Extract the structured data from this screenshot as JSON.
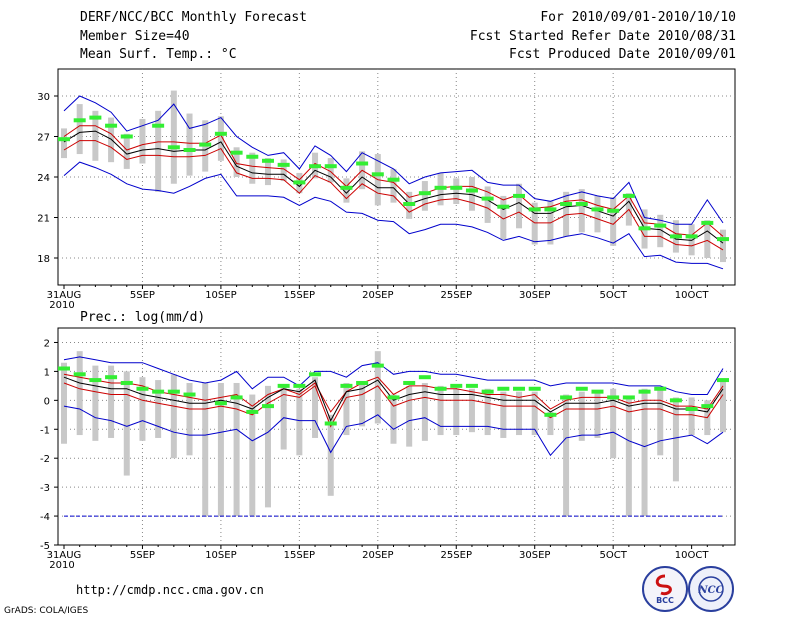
{
  "header": {
    "title": "DERF/NCC/BCC Monthly Forecast",
    "member": "Member Size=40",
    "var1": "Mean Surf. Temp.: °C",
    "period": "For 2010/09/01-2010/10/10",
    "started": "Fcst Started Refer Date 2010/08/31",
    "produced": "Fcst Produced Date 2010/09/01"
  },
  "footer": {
    "url": "http://cmdp.ncc.cma.gov.cn",
    "grads": "GrADS: COLA/IGES",
    "logo1": "BCC",
    "logo2": "NCC"
  },
  "colors": {
    "max_min": "#0000cc",
    "spread": "#cc0000",
    "mean": "#000000",
    "box": "#c8c8c8",
    "obs": "#33ee33",
    "grid": "#888888"
  },
  "chart_data": [
    {
      "type": "line",
      "title": "Mean Surf. Temp.: °C",
      "ylim": [
        16,
        32
      ],
      "yticks": [
        18,
        21,
        24,
        27,
        30
      ],
      "x_dates_start": "31AUG",
      "xticks": [
        "31AUG",
        "5SEP",
        "10SEP",
        "15SEP",
        "20SEP",
        "25SEP",
        "30SEP",
        "5OCT",
        "10OCT"
      ],
      "x_year": "2010",
      "series": [
        {
          "name": "max",
          "values": [
            28.9,
            30.0,
            29.5,
            28.8,
            27.4,
            27.8,
            28.2,
            29.4,
            27.6,
            27.9,
            28.4,
            27.0,
            26.2,
            25.6,
            25.8,
            24.6,
            26.3,
            25.6,
            24.4,
            25.8,
            25.2,
            24.6,
            23.5,
            24.0,
            24.3,
            24.4,
            24.5,
            23.6,
            23.4,
            23.4,
            22.4,
            22.2,
            22.6,
            22.9,
            22.6,
            22.4,
            23.6,
            21.0,
            20.8,
            20.5,
            20.5,
            22.3,
            20.6
          ]
        },
        {
          "name": "upper",
          "values": [
            27.0,
            27.8,
            27.8,
            27.2,
            26.0,
            26.4,
            26.6,
            26.6,
            26.5,
            26.5,
            27.1,
            25.0,
            24.8,
            24.7,
            24.6,
            23.8,
            25.0,
            24.4,
            23.3,
            24.5,
            23.8,
            23.6,
            22.5,
            22.8,
            23.2,
            23.3,
            23.3,
            22.9,
            22.3,
            22.7,
            21.7,
            21.8,
            22.2,
            22.3,
            21.9,
            21.6,
            22.6,
            20.6,
            20.5,
            19.8,
            19.7,
            20.6,
            19.6
          ]
        },
        {
          "name": "mean",
          "values": [
            26.6,
            27.3,
            27.4,
            26.8,
            25.7,
            26.0,
            26.1,
            25.9,
            26.0,
            26.0,
            26.6,
            24.8,
            24.3,
            24.2,
            24.2,
            23.3,
            24.5,
            24.0,
            22.8,
            24.0,
            23.2,
            23.2,
            22.0,
            22.4,
            22.7,
            22.8,
            22.7,
            22.3,
            21.6,
            22.1,
            21.3,
            21.3,
            21.8,
            21.9,
            21.5,
            21.1,
            22.2,
            20.2,
            20.1,
            19.4,
            19.3,
            20.0,
            19.1
          ]
        },
        {
          "name": "lower",
          "values": [
            26.0,
            26.7,
            26.7,
            26.2,
            25.3,
            25.6,
            25.6,
            25.5,
            25.5,
            25.6,
            26.1,
            24.3,
            23.9,
            23.9,
            23.8,
            22.8,
            24.1,
            23.6,
            22.4,
            23.5,
            22.8,
            22.6,
            21.4,
            22.0,
            22.3,
            22.4,
            22.1,
            21.7,
            20.9,
            21.4,
            20.6,
            20.6,
            21.2,
            21.3,
            20.9,
            20.5,
            21.6,
            19.6,
            19.6,
            19.0,
            18.9,
            19.3,
            18.6
          ]
        },
        {
          "name": "min",
          "values": [
            24.1,
            25.1,
            24.7,
            24.2,
            23.5,
            23.1,
            23.0,
            22.8,
            23.3,
            23.9,
            24.2,
            22.6,
            22.6,
            22.6,
            22.5,
            21.9,
            22.5,
            22.2,
            21.4,
            21.3,
            20.8,
            20.7,
            19.8,
            20.1,
            20.5,
            20.5,
            20.3,
            19.9,
            19.3,
            19.6,
            19.2,
            19.3,
            19.6,
            19.8,
            19.5,
            19.1,
            19.8,
            18.1,
            18.2,
            17.7,
            17.6,
            17.6,
            17.2
          ]
        },
        {
          "name": "box_high",
          "values": [
            27.6,
            29.4,
            28.9,
            28.4,
            27.2,
            28.3,
            28.9,
            30.4,
            28.7,
            28.2,
            28.5,
            26.2,
            25.8,
            25.4,
            25.3,
            24.3,
            25.8,
            25.4,
            23.9,
            25.9,
            25.7,
            24.6,
            22.9,
            23.7,
            24.3,
            23.9,
            24.0,
            23.3,
            22.6,
            23.5,
            22.1,
            22.2,
            22.9,
            23.1,
            22.6,
            22.5,
            22.8,
            21.6,
            21.2,
            20.8,
            20.5,
            20.8,
            20.1
          ]
        },
        {
          "name": "box_low",
          "values": [
            25.4,
            25.7,
            25.2,
            25.1,
            24.6,
            25.0,
            22.9,
            23.5,
            24.1,
            24.4,
            25.2,
            24.0,
            23.5,
            23.4,
            23.7,
            22.8,
            23.9,
            23.6,
            22.1,
            23.1,
            21.9,
            22.1,
            20.9,
            21.5,
            21.9,
            22.0,
            21.5,
            20.6,
            19.4,
            20.2,
            19.0,
            19.0,
            19.6,
            19.9,
            19.9,
            18.9,
            20.4,
            18.7,
            18.8,
            18.4,
            18.2,
            18.0,
            17.7
          ]
        },
        {
          "name": "observed",
          "values": [
            26.8,
            28.2,
            28.4,
            27.8,
            27.0,
            null,
            27.8,
            26.2,
            26.0,
            26.4,
            27.2,
            25.8,
            25.5,
            25.2,
            24.9,
            23.6,
            24.8,
            24.8,
            23.2,
            25.0,
            24.2,
            23.8,
            22.0,
            22.8,
            23.2,
            23.2,
            23.0,
            22.4,
            21.8,
            22.6,
            21.6,
            21.6,
            22.0,
            22.0,
            21.6,
            21.5,
            22.6,
            20.2,
            20.4,
            19.6,
            19.6,
            20.6,
            19.4
          ]
        }
      ]
    },
    {
      "type": "line",
      "title": "Prec.: log(mm/d)",
      "ylim": [
        -5,
        2.5
      ],
      "yticks": [
        -5,
        -4,
        -3,
        -2,
        -1,
        0,
        1,
        2
      ],
      "x_dates_start": "31AUG",
      "xticks": [
        "31AUG",
        "5SEP",
        "10SEP",
        "15SEP",
        "20SEP",
        "25SEP",
        "30SEP",
        "5OCT",
        "10OCT"
      ],
      "x_year": "2010",
      "series": [
        {
          "name": "max",
          "values": [
            1.4,
            1.5,
            1.4,
            1.3,
            1.3,
            1.3,
            1.1,
            0.9,
            0.7,
            0.6,
            0.7,
            1.0,
            0.4,
            0.8,
            0.8,
            0.5,
            1.0,
            1.0,
            0.8,
            1.2,
            1.3,
            0.9,
            1.0,
            1.0,
            0.9,
            0.9,
            0.8,
            0.7,
            0.7,
            0.7,
            0.7,
            0.5,
            0.6,
            0.6,
            0.6,
            0.6,
            0.5,
            0.5,
            0.5,
            0.3,
            0.2,
            0.2,
            1.1
          ]
        },
        {
          "name": "upper",
          "values": [
            0.9,
            0.8,
            0.7,
            0.6,
            0.6,
            0.5,
            0.3,
            0.2,
            0.1,
            0.0,
            0.1,
            0.2,
            -0.2,
            0.2,
            0.4,
            0.2,
            0.6,
            -0.4,
            0.3,
            0.6,
            0.8,
            0.2,
            0.5,
            0.5,
            0.4,
            0.4,
            0.3,
            0.2,
            0.2,
            0.1,
            0.2,
            -0.3,
            0.0,
            0.1,
            0.1,
            0.1,
            -0.1,
            0.0,
            0.0,
            -0.2,
            -0.2,
            -0.3,
            0.5
          ]
        },
        {
          "name": "mean",
          "values": [
            0.8,
            0.6,
            0.5,
            0.4,
            0.4,
            0.2,
            0.1,
            0.0,
            -0.1,
            -0.1,
            0.0,
            -0.1,
            -0.3,
            0.1,
            0.4,
            0.3,
            0.7,
            -0.7,
            0.3,
            0.4,
            0.7,
            0.0,
            0.2,
            0.3,
            0.2,
            0.2,
            0.2,
            0.1,
            0.0,
            0.0,
            0.0,
            -0.4,
            -0.1,
            -0.1,
            -0.1,
            0.0,
            -0.2,
            -0.1,
            -0.1,
            -0.3,
            -0.3,
            -0.4,
            0.4
          ]
        },
        {
          "name": "lower",
          "values": [
            0.6,
            0.4,
            0.3,
            0.2,
            0.2,
            0.0,
            -0.1,
            -0.2,
            -0.3,
            -0.3,
            -0.2,
            -0.3,
            -0.5,
            -0.1,
            0.2,
            0.1,
            0.5,
            -0.9,
            0.1,
            0.2,
            0.5,
            -0.2,
            0.0,
            0.1,
            0.0,
            0.0,
            0.0,
            -0.1,
            -0.2,
            -0.2,
            -0.2,
            -0.6,
            -0.3,
            -0.3,
            -0.3,
            -0.2,
            -0.4,
            -0.3,
            -0.3,
            -0.5,
            -0.5,
            -0.6,
            0.2
          ]
        },
        {
          "name": "min",
          "values": [
            -0.2,
            -0.3,
            -0.6,
            -0.7,
            -0.9,
            -0.7,
            -0.9,
            -1.1,
            -1.2,
            -1.2,
            -1.1,
            -1.0,
            -1.4,
            -1.1,
            -0.6,
            -0.7,
            -0.7,
            -1.8,
            -0.9,
            -0.8,
            -0.5,
            -1.0,
            -0.7,
            -0.6,
            -0.9,
            -0.9,
            -0.9,
            -0.9,
            -1.0,
            -1.0,
            -1.0,
            -1.9,
            -1.3,
            -1.2,
            -1.2,
            -1.1,
            -1.4,
            -1.6,
            -1.4,
            -1.3,
            -1.2,
            -1.5,
            -1.1
          ]
        },
        {
          "name": "box_high",
          "values": [
            1.3,
            1.7,
            1.2,
            1.2,
            1.0,
            0.8,
            0.7,
            0.9,
            0.6,
            0.6,
            0.6,
            0.6,
            0.2,
            0.5,
            0.5,
            0.4,
            0.8,
            -0.5,
            0.6,
            0.6,
            1.7,
            0.2,
            0.5,
            0.6,
            0.5,
            0.4,
            0.4,
            0.4,
            0.3,
            0.3,
            0.3,
            -0.4,
            0.2,
            0.3,
            0.3,
            0.4,
            0.1,
            0.4,
            0.4,
            0.1,
            0.1,
            0.0,
            0.7
          ]
        },
        {
          "name": "box_low",
          "values": [
            -1.5,
            -1.2,
            -1.4,
            -1.3,
            -2.6,
            -1.4,
            -1.3,
            -2.0,
            -1.9,
            -4.0,
            -4.0,
            -4.0,
            -4.0,
            -3.7,
            -1.7,
            -1.9,
            -1.3,
            -3.3,
            -1.2,
            -0.9,
            -0.8,
            -1.5,
            -1.6,
            -1.4,
            -1.2,
            -1.2,
            -1.1,
            -1.2,
            -1.3,
            -1.2,
            -1.2,
            -1.2,
            -4.0,
            -1.4,
            -1.3,
            -2.0,
            -4.0,
            -4.0,
            -1.9,
            -2.8,
            -1.2,
            -1.2,
            -1.1
          ]
        },
        {
          "name": "observed",
          "values": [
            1.1,
            0.9,
            0.7,
            0.8,
            0.6,
            0.4,
            0.3,
            0.3,
            0.2,
            null,
            -0.1,
            0.1,
            -0.4,
            -0.2,
            0.5,
            0.5,
            0.9,
            -0.8,
            0.5,
            0.6,
            1.2,
            0.1,
            0.6,
            0.8,
            0.4,
            0.5,
            0.5,
            0.3,
            0.4,
            0.4,
            0.4,
            -0.5,
            0.1,
            0.4,
            0.3,
            0.1,
            0.1,
            0.3,
            0.4,
            0.0,
            -0.3,
            -0.2,
            0.7
          ]
        },
        {
          "name": "floor",
          "values": [
            -4,
            -4,
            -4,
            -4,
            -4,
            -4,
            -4,
            -4,
            -4,
            -4,
            -4,
            -4,
            -4,
            -4,
            -4,
            -4,
            -4,
            -4,
            -4,
            -4,
            -4,
            -4,
            -4,
            -4,
            -4,
            -4,
            -4,
            -4,
            -4,
            -4,
            -4,
            -4,
            -4,
            -4,
            -4,
            -4,
            -4,
            -4,
            -4,
            -4,
            -4,
            -4,
            -4
          ]
        }
      ]
    }
  ]
}
